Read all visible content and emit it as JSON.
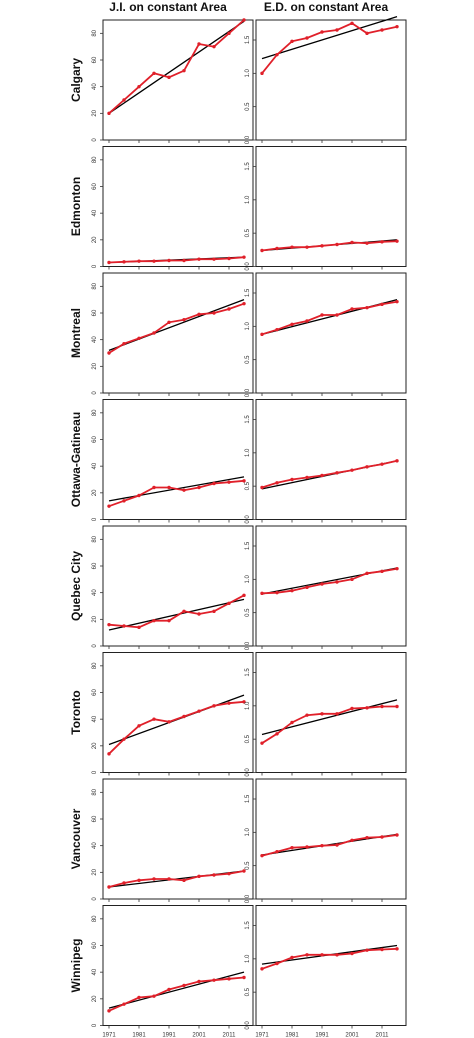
{
  "column_titles": [
    "J.I. on constant Area",
    "E.D. on constant Area"
  ],
  "colors": {
    "data": "#e0202a",
    "fit": "#000000",
    "frame": "#222222"
  },
  "chart_data": {
    "type": "line",
    "years": [
      1971,
      1976,
      1981,
      1986,
      1991,
      1996,
      2001,
      2006,
      2011,
      2016
    ],
    "x_tick_labels": [
      "1971",
      "1981",
      "1991",
      "2001",
      "2011"
    ],
    "ji": {
      "ylim": [
        0,
        90
      ],
      "ytick_labels": [
        "0",
        "20",
        "40",
        "60",
        "80"
      ],
      "ytick_values": [
        0,
        20,
        40,
        60,
        80
      ]
    },
    "ed": {
      "ylim": [
        0,
        1.8
      ],
      "ytick_labels": [
        "0.0",
        "0.5",
        "1.0",
        "1.5"
      ],
      "ytick_values": [
        0,
        0.5,
        1.0,
        1.5
      ]
    },
    "cities": [
      {
        "name": "Calgary",
        "ji": [
          20,
          30,
          40,
          50,
          47,
          52,
          72,
          70,
          80,
          90
        ],
        "ji_fit": [
          20,
          89
        ],
        "ed": [
          1.0,
          1.28,
          1.48,
          1.53,
          1.62,
          1.65,
          1.75,
          1.6,
          1.65,
          1.7
        ],
        "ed_fit": [
          1.22,
          1.85
        ]
      },
      {
        "name": "Edmonton",
        "ji": [
          3,
          3.5,
          4,
          4,
          4.5,
          4.5,
          5.5,
          5.5,
          6,
          7
        ],
        "ji_fit": [
          3,
          7
        ],
        "ed": [
          0.24,
          0.27,
          0.29,
          0.29,
          0.31,
          0.33,
          0.36,
          0.35,
          0.37,
          0.38
        ],
        "ed_fit": [
          0.24,
          0.4
        ]
      },
      {
        "name": "Montreal",
        "ji": [
          30,
          37,
          41,
          45,
          53,
          55,
          59,
          60,
          63,
          67
        ],
        "ji_fit": [
          32,
          70
        ],
        "ed": [
          0.88,
          0.95,
          1.03,
          1.08,
          1.17,
          1.17,
          1.26,
          1.28,
          1.33,
          1.37
        ],
        "ed_fit": [
          0.88,
          1.4
        ]
      },
      {
        "name": "Ottawa-Gatineau",
        "ji": [
          10,
          14,
          18,
          24,
          24,
          22,
          24,
          27,
          28,
          29
        ],
        "ji_fit": [
          14,
          32
        ],
        "ed": [
          0.48,
          0.55,
          0.6,
          0.63,
          0.66,
          0.7,
          0.74,
          0.79,
          0.83,
          0.88
        ],
        "ed_fit": [
          0.46,
          0.88
        ]
      },
      {
        "name": "Quebec City",
        "ji": [
          16,
          15,
          14,
          19,
          19,
          26,
          24,
          26,
          32,
          38
        ],
        "ji_fit": [
          12,
          35
        ],
        "ed": [
          0.79,
          0.8,
          0.83,
          0.88,
          0.93,
          0.96,
          1.0,
          1.09,
          1.12,
          1.16
        ],
        "ed_fit": [
          0.78,
          1.17
        ]
      },
      {
        "name": "Toronto",
        "ji": [
          14,
          25,
          35,
          40,
          38,
          42,
          46,
          50,
          52,
          53
        ],
        "ji_fit": [
          21,
          58
        ],
        "ed": [
          0.44,
          0.58,
          0.75,
          0.86,
          0.88,
          0.88,
          0.96,
          0.97,
          0.99,
          0.99
        ],
        "ed_fit": [
          0.57,
          1.09
        ]
      },
      {
        "name": "Vancouver",
        "ji": [
          9,
          12,
          14,
          15,
          15,
          14,
          17,
          18,
          19,
          21
        ],
        "ji_fit": [
          9,
          21
        ],
        "ed": [
          0.65,
          0.71,
          0.77,
          0.78,
          0.8,
          0.81,
          0.88,
          0.92,
          0.93,
          0.96
        ],
        "ed_fit": [
          0.66,
          0.97
        ]
      },
      {
        "name": "Winnipeg",
        "ji": [
          11,
          16,
          21,
          22,
          27,
          30,
          33,
          34,
          35,
          36
        ],
        "ji_fit": [
          13,
          40
        ],
        "ed": [
          0.85,
          0.93,
          1.02,
          1.06,
          1.06,
          1.06,
          1.08,
          1.13,
          1.14,
          1.15
        ],
        "ed_fit": [
          0.92,
          1.2
        ]
      }
    ]
  }
}
